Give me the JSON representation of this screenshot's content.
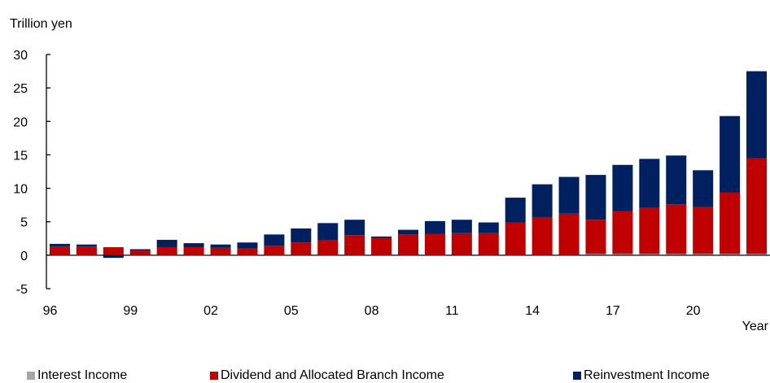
{
  "chart_data": {
    "type": "bar",
    "stacked": true,
    "ylabel": "Trillion yen",
    "xlabel": "Year",
    "ylim": [
      -5,
      30
    ],
    "yticks": [
      -5,
      0,
      5,
      10,
      15,
      20,
      25,
      30
    ],
    "categories": [
      "96",
      "97",
      "98",
      "99",
      "00",
      "01",
      "02",
      "03",
      "04",
      "05",
      "06",
      "07",
      "08",
      "09",
      "10",
      "11",
      "12",
      "13",
      "14",
      "15",
      "16",
      "17",
      "18",
      "19",
      "20",
      "21",
      "22"
    ],
    "xtick_labels": [
      "96",
      "",
      "",
      "99",
      "",
      "",
      "02",
      "",
      "",
      "05",
      "",
      "",
      "08",
      "",
      "",
      "11",
      "",
      "",
      "14",
      "",
      "",
      "17",
      "",
      "",
      "20",
      "",
      ""
    ],
    "series": [
      {
        "name": "Interest Income",
        "color": "#a6a6a6",
        "values": [
          0.1,
          0.1,
          0.1,
          0.1,
          0.1,
          0.1,
          0.1,
          0.1,
          0.1,
          0.1,
          0.1,
          0.1,
          0.1,
          0.1,
          0.1,
          0.1,
          0.1,
          0.1,
          0.1,
          0.1,
          0.2,
          0.2,
          0.2,
          0.2,
          0.2,
          0.2,
          0.2
        ]
      },
      {
        "name": "Dividend and Allocated Branch Income",
        "color": "#c00000",
        "values": [
          1.2,
          1.2,
          1.1,
          0.6,
          1.1,
          1.1,
          1.0,
          0.9,
          1.3,
          1.8,
          2.1,
          2.9,
          2.5,
          3.0,
          3.1,
          3.2,
          3.2,
          4.8,
          5.6,
          6.1,
          5.1,
          6.4,
          6.9,
          7.4,
          7.0,
          9.2,
          14.3
        ]
      },
      {
        "name": "Reinvestment Income",
        "color": "#002060",
        "values": [
          0.4,
          0.3,
          -0.4,
          0.2,
          1.1,
          0.6,
          0.5,
          0.9,
          1.7,
          2.1,
          2.6,
          2.3,
          0.2,
          0.7,
          1.9,
          2.0,
          1.6,
          3.7,
          4.9,
          5.5,
          6.7,
          6.9,
          7.3,
          7.3,
          5.5,
          11.4,
          13.0
        ]
      }
    ]
  }
}
